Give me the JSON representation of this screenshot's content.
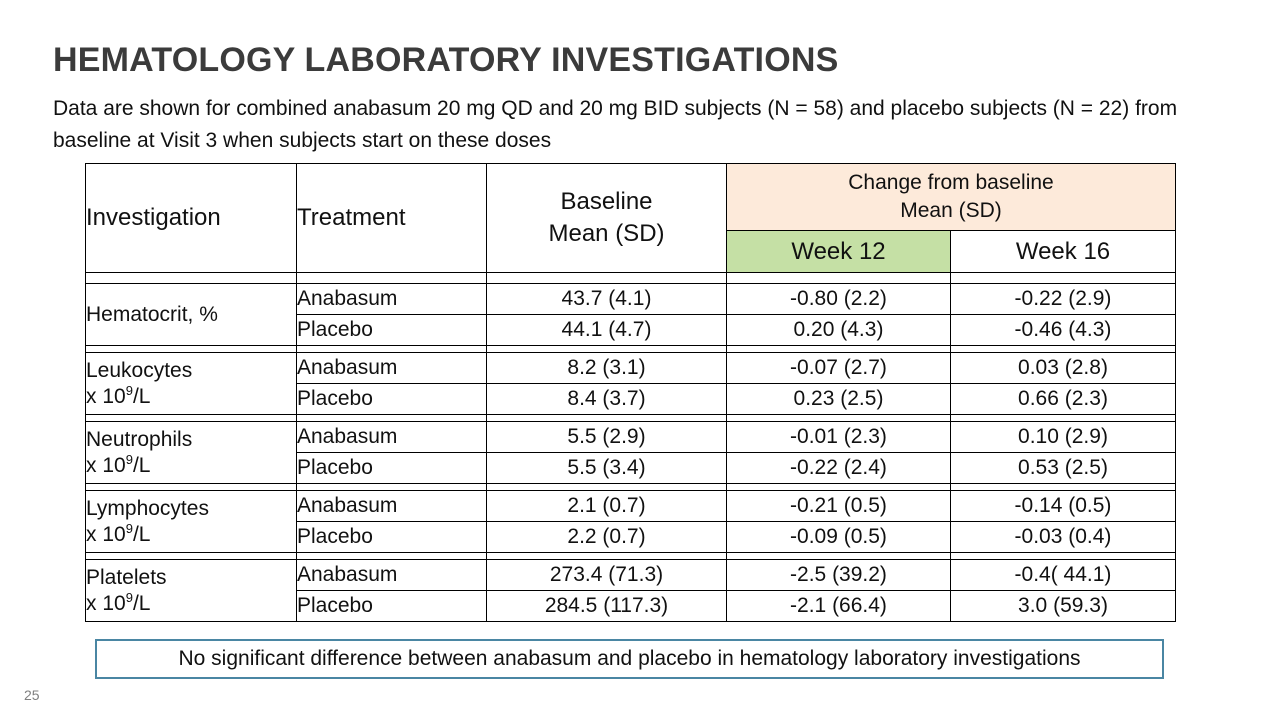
{
  "slide": {
    "title": "HEMATOLOGY LABORATORY INVESTIGATIONS",
    "subtitle": "Data are shown for combined anabasum 20 mg QD and 20 mg BID subjects (N = 58) and placebo subjects (N = 22) from baseline at Visit 3 when subjects start on these doses",
    "page_number": "25",
    "footnote": "No significant difference between anabasum and placebo in hematology laboratory investigations"
  },
  "table": {
    "headers": {
      "investigation": "Investigation",
      "treatment": "Treatment",
      "baseline_line1": "Baseline",
      "baseline_line2": "Mean (SD)",
      "change_line1": "Change from baseline",
      "change_line2": "Mean (SD)",
      "week12": "Week 12",
      "week16": "Week 16"
    },
    "groups": [
      {
        "name": "Hematocrit, %",
        "rows": [
          {
            "treatment": "Anabasum",
            "baseline": "43.7 (4.1)",
            "week12": "-0.80 (2.2)",
            "week16": "-0.22 (2.9)"
          },
          {
            "treatment": "Placebo",
            "baseline": "44.1 (4.7)",
            "week12": "0.20 (4.3)",
            "week16": "-0.46 (4.3)"
          }
        ]
      },
      {
        "name": "Leukocytes",
        "unit_prefix": "x 10",
        "unit_sup": "9",
        "unit_suffix": "/L",
        "rows": [
          {
            "treatment": "Anabasum",
            "baseline": "8.2 (3.1)",
            "week12": "-0.07 (2.7)",
            "week16": "0.03 (2.8)"
          },
          {
            "treatment": "Placebo",
            "baseline": "8.4 (3.7)",
            "week12": "0.23 (2.5)",
            "week16": "0.66 (2.3)"
          }
        ]
      },
      {
        "name": "Neutrophils",
        "unit_prefix": "x 10",
        "unit_sup": "9",
        "unit_suffix": "/L",
        "rows": [
          {
            "treatment": "Anabasum",
            "baseline": "5.5 (2.9)",
            "week12": "-0.01 (2.3)",
            "week16": "0.10 (2.9)"
          },
          {
            "treatment": "Placebo",
            "baseline": "5.5 (3.4)",
            "week12": "-0.22 (2.4)",
            "week16": "0.53 (2.5)"
          }
        ]
      },
      {
        "name": "Lymphocytes",
        "unit_prefix": "x 10",
        "unit_sup": "9",
        "unit_suffix": "/L",
        "rows": [
          {
            "treatment": "Anabasum",
            "baseline": "2.1 (0.7)",
            "week12": "-0.21 (0.5)",
            "week16": "-0.14 (0.5)"
          },
          {
            "treatment": "Placebo",
            "baseline": "2.2 (0.7)",
            "week12": "-0.09 (0.5)",
            "week16": "-0.03 (0.4)"
          }
        ]
      },
      {
        "name": "Platelets",
        "unit_prefix": "x 10",
        "unit_sup": "9",
        "unit_suffix": "/L",
        "rows": [
          {
            "treatment": "Anabasum",
            "baseline": "273.4 (71.3)",
            "week12": "-2.5 (39.2)",
            "week16": "-0.4( 44.1)"
          },
          {
            "treatment": "Placebo",
            "baseline": "284.5 (117.3)",
            "week12": "-2.1 (66.4)",
            "week16": "3.0 (59.3)"
          }
        ]
      }
    ]
  },
  "colors": {
    "change_header_bg": "#fdeada",
    "week12_header_bg": "#c5e0a5",
    "footnote_border": "#4a86a3",
    "title_color": "#3b3b3b"
  }
}
